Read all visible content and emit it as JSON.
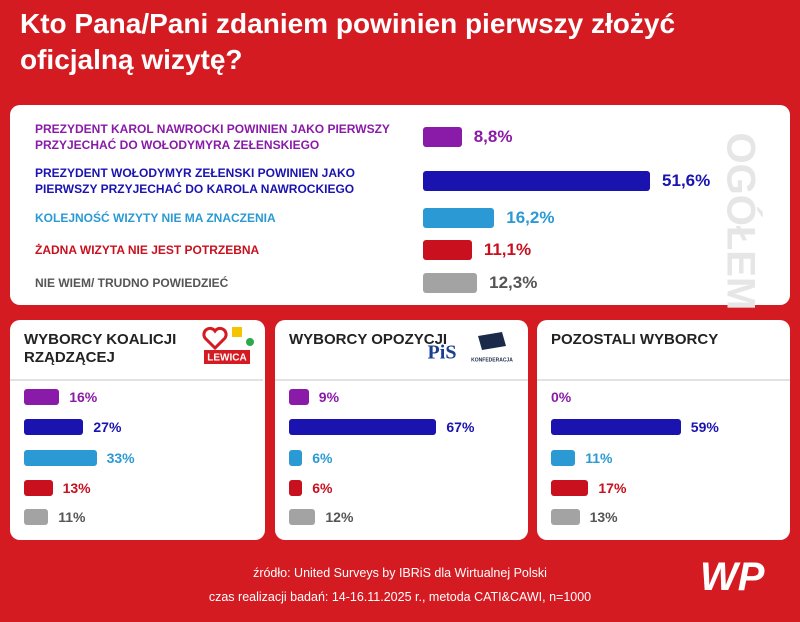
{
  "title": "Kto Pana/Pani zdaniem powinien pierwszy złożyć oficjalną wizytę?",
  "chart_data": [
    {
      "type": "bar",
      "title": "OGÓŁEM",
      "categories": [
        "PREZYDENT KAROL NAWROCKI POWINIEN JAKO PIERWSZY PRZYJECHAĆ DO WOŁODYMYRA ZEŁENSKIEGO",
        "PREZYDENT WOŁODYMYR ZEŁENSKI POWINIEN JAKO PIERWSZY PRZYJECHAĆ DO KAROLA NAWROCKIEGO",
        "KOLEJNOŚĆ WIZYTY NIE MA ZNACZENIA",
        "ŻADNA WIZYTA NIE JEST POTRZEBNA",
        "NIE WIEM/ TRUDNO POWIEDZIEĆ"
      ],
      "values": [
        8.8,
        51.6,
        16.2,
        11.1,
        12.3
      ],
      "value_labels": [
        "8,8%",
        "51,6%",
        "16,2%",
        "11,1%",
        "12,3%"
      ],
      "colors": [
        "#8a1aa8",
        "#1a13b0",
        "#2b9ad4",
        "#c8101e",
        "#a3a3a3"
      ],
      "text_colors": [
        "#8a1aa8",
        "#1a13b0",
        "#2b9ad4",
        "#c8101e",
        "#555555"
      ]
    },
    {
      "type": "bar",
      "title": "WYBORCY KOALICJI RZĄDZĄCEJ",
      "values": [
        16,
        27,
        33,
        13,
        11
      ],
      "value_labels": [
        "16%",
        "27%",
        "33%",
        "13%",
        "11%"
      ],
      "colors": [
        "#8a1aa8",
        "#1a13b0",
        "#2b9ad4",
        "#c8101e",
        "#a3a3a3"
      ],
      "text_colors": [
        "#8a1aa8",
        "#1a13b0",
        "#2b9ad4",
        "#c8101e",
        "#555555"
      ],
      "logos": [
        "LEWICA"
      ]
    },
    {
      "type": "bar",
      "title": "WYBORCY OPOZYCJI",
      "values": [
        9,
        67,
        6,
        6,
        12
      ],
      "value_labels": [
        "9%",
        "67%",
        "6%",
        "6%",
        "12%"
      ],
      "colors": [
        "#8a1aa8",
        "#1a13b0",
        "#2b9ad4",
        "#c8101e",
        "#a3a3a3"
      ],
      "text_colors": [
        "#8a1aa8",
        "#1a13b0",
        "#2b9ad4",
        "#c8101e",
        "#555555"
      ],
      "logos": [
        "PiS",
        "KONFEDERACJA"
      ]
    },
    {
      "type": "bar",
      "title": "POZOSTALI WYBORCY",
      "values": [
        0,
        59,
        11,
        17,
        13
      ],
      "value_labels": [
        "0%",
        "59%",
        "11%",
        "17%",
        "13%"
      ],
      "colors": [
        "#8a1aa8",
        "#1a13b0",
        "#2b9ad4",
        "#c8101e",
        "#a3a3a3"
      ],
      "text_colors": [
        "#8a1aa8",
        "#1a13b0",
        "#2b9ad4",
        "#c8101e",
        "#555555"
      ]
    }
  ],
  "footer": {
    "source": "źródło: United Surveys by IBRiS dla Wirtualnej Polski",
    "method": "czas realizacji badań: 14-16.11.2025 r., metoda CATI&CAWI, n=1000",
    "brand": "WP"
  }
}
